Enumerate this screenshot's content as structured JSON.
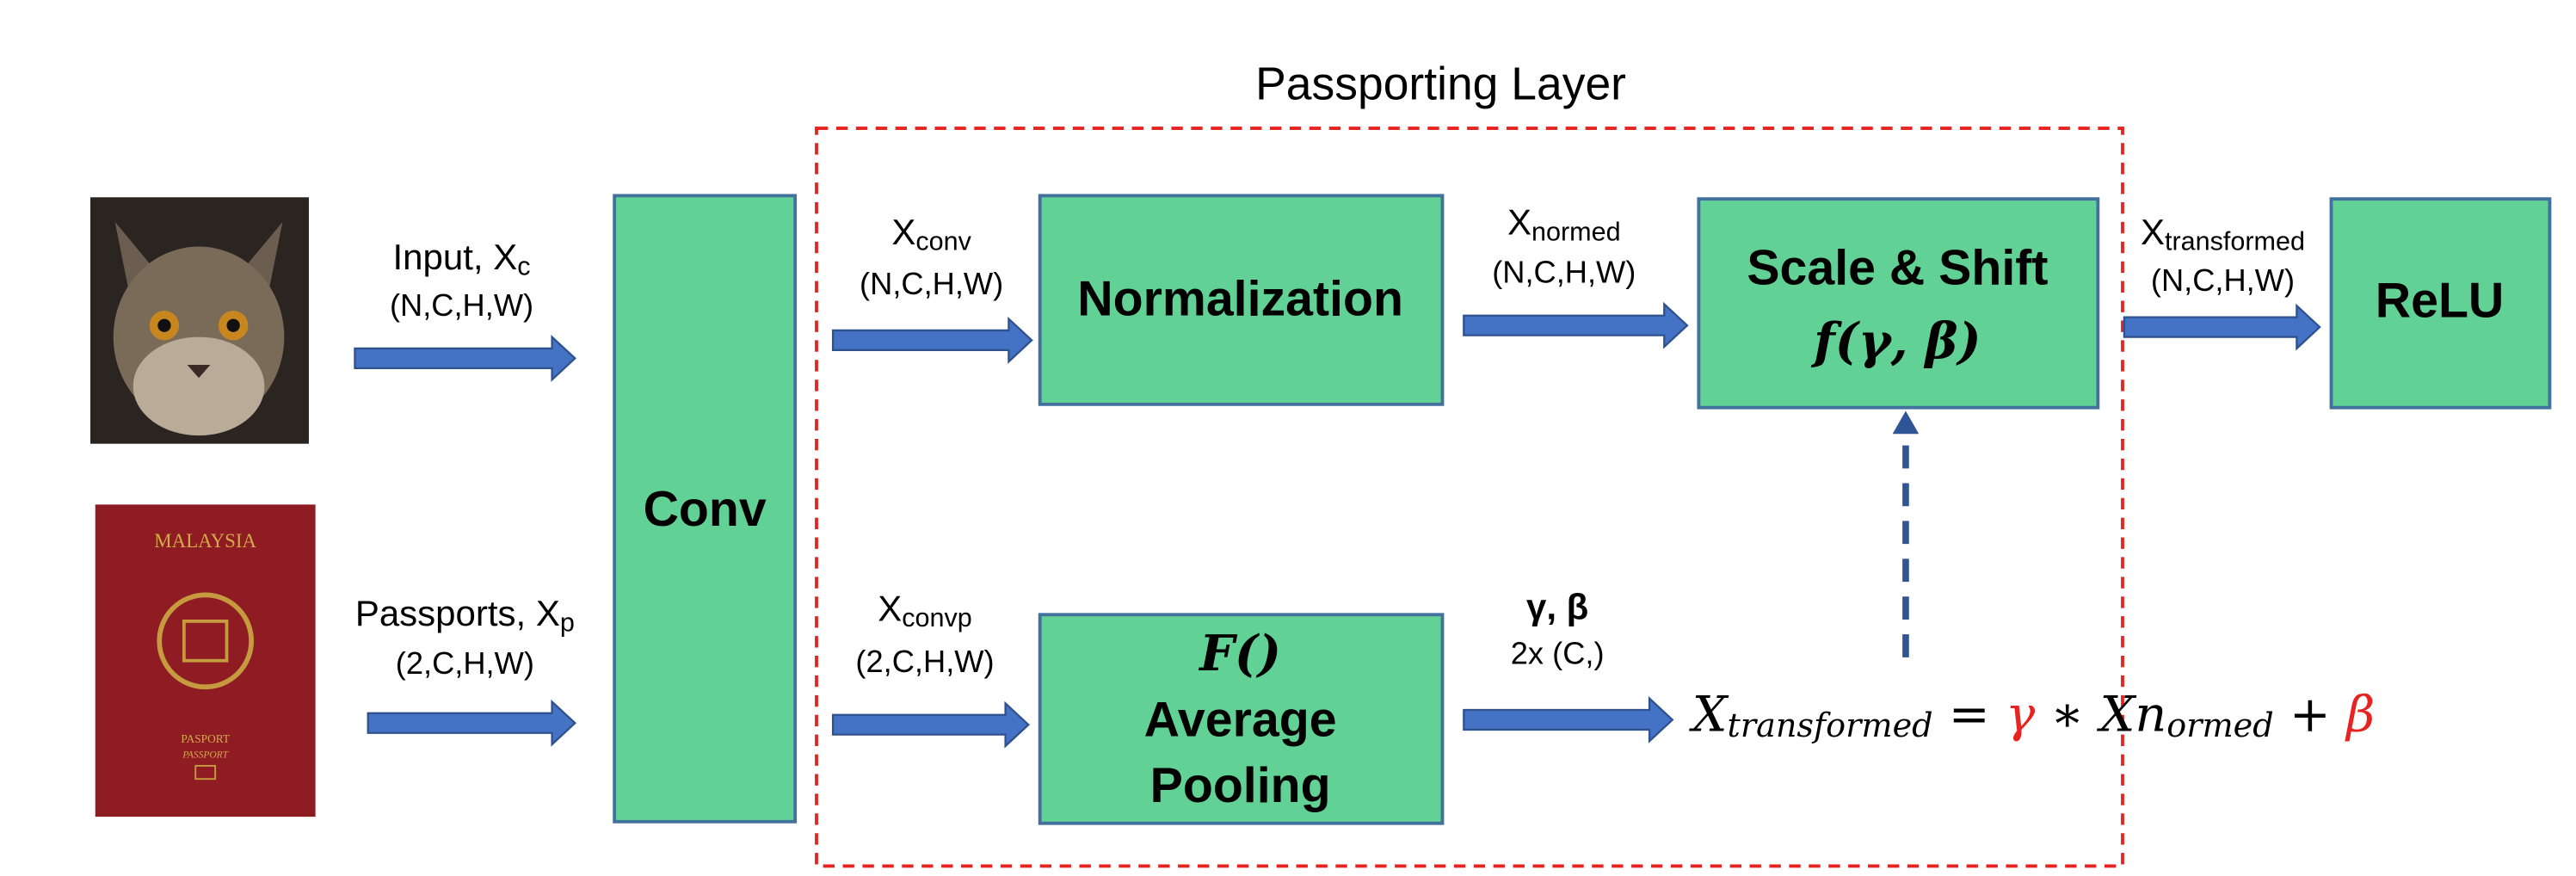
{
  "title": "Passporting Layer",
  "inputs": [
    {
      "label": "Input, X",
      "sub": "c",
      "shape": "(N,C,H,W)"
    },
    {
      "label": "Passports, X",
      "sub": "p",
      "shape": "(2,C,H,W)"
    }
  ],
  "passport": {
    "country": "MALAYSIA",
    "line1": "PASPORT",
    "line2": "PASSPORT"
  },
  "blocks": {
    "conv": "Conv",
    "normalization": "Normalization",
    "scale_shift": "Scale & Shift",
    "scale_shift_fn": "f(γ, β)",
    "relu": "ReLU",
    "pooling_fn": "F()",
    "pooling_1": "Average",
    "pooling_2": "Pooling"
  },
  "edges": {
    "x_conv": {
      "label": "X",
      "sub": "conv",
      "shape": "(N,C,H,W)"
    },
    "x_normed": {
      "label": "X",
      "sub": "normed",
      "shape": "(N,C,H,W)"
    },
    "x_transformed": {
      "label": "X",
      "sub": "transformed",
      "shape": "(N,C,H,W)"
    },
    "x_convp": {
      "label": "X",
      "sub": "convp",
      "shape": "(2,C,H,W)"
    },
    "gamma_beta": {
      "label": "γ, β",
      "shape": "2x (C,)"
    }
  },
  "equation": {
    "lhs": "X",
    "lhs_sub": "transformed",
    "eq": " = ",
    "gamma": "γ",
    "times": " ∗ Xn",
    "normed_sub": "ormed",
    "plus": " + ",
    "beta": "β"
  }
}
